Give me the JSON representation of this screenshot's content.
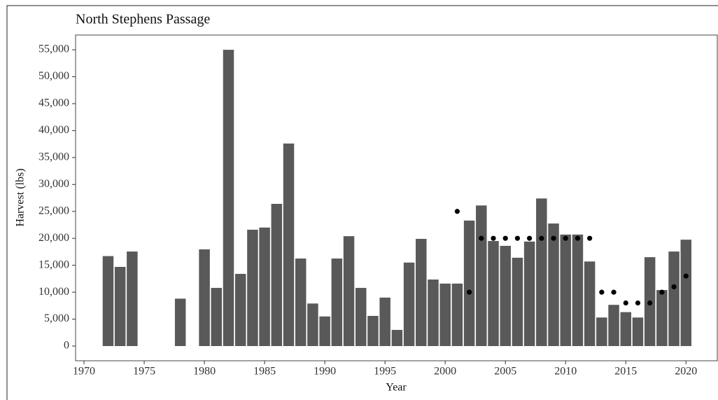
{
  "chart_data": {
    "type": "bar",
    "title": "North Stephens Passage",
    "x_label": "Year",
    "y_label": "Harvest (lbs)",
    "x": [
      1972,
      1973,
      1974,
      1978,
      1980,
      1981,
      1982,
      1983,
      1984,
      1985,
      1986,
      1987,
      1988,
      1989,
      1990,
      1991,
      1992,
      1993,
      1994,
      1995,
      1996,
      1997,
      1998,
      1999,
      2000,
      2001,
      2002,
      2003,
      2004,
      2005,
      2006,
      2007,
      2008,
      2009,
      2010,
      2011,
      2012,
      2013,
      2014,
      2015,
      2016,
      2017,
      2018,
      2019,
      2020
    ],
    "values": [
      16700,
      14700,
      17550,
      8800,
      17950,
      10800,
      55000,
      13400,
      21600,
      22000,
      26400,
      37600,
      16250,
      7900,
      5500,
      16250,
      20400,
      10800,
      5600,
      9000,
      3000,
      15500,
      19900,
      12350,
      11600,
      11600,
      23300,
      26100,
      19500,
      18600,
      16400,
      19400,
      27400,
      22750,
      20700,
      20700,
      15700,
      5300,
      7650,
      6300,
      5300,
      16500,
      10400,
      17550,
      19750
    ],
    "color": "#595959",
    "overlay": {
      "type": "scatter",
      "color": "#000000",
      "x": [
        2001,
        2002,
        2003,
        2004,
        2005,
        2006,
        2007,
        2008,
        2009,
        2010,
        2011,
        2012,
        2013,
        2014,
        2015,
        2016,
        2017,
        2018,
        2019,
        2020
      ],
      "values": [
        25000,
        10000,
        20000,
        20000,
        20000,
        20000,
        20000,
        20000,
        20000,
        20000,
        20000,
        20000,
        10000,
        10000,
        8000,
        8000,
        8000,
        10000,
        11000,
        13000
      ]
    },
    "xlim": [
      1969.3,
      2022.6
    ],
    "ylim": [
      -2730,
      57740
    ],
    "xticks": [
      1970,
      1975,
      1980,
      1985,
      1990,
      1995,
      2000,
      2005,
      2010,
      2015,
      2020
    ],
    "yticks": [
      0,
      {
        "value": 5000,
        "label": "5,000"
      },
      {
        "value": 10000,
        "label": "10,000"
      },
      {
        "value": 15000,
        "label": "15,000"
      },
      {
        "value": 20000,
        "label": "20,000"
      },
      {
        "value": 25000,
        "label": "25,000"
      },
      {
        "value": 30000,
        "label": "30,000"
      },
      {
        "value": 35000,
        "label": "35,000"
      },
      {
        "value": 40000,
        "label": "40,000"
      },
      {
        "value": 45000,
        "label": "45,000"
      },
      {
        "value": 50000,
        "label": "50,000"
      },
      {
        "value": 55000,
        "label": "55,000"
      }
    ]
  }
}
